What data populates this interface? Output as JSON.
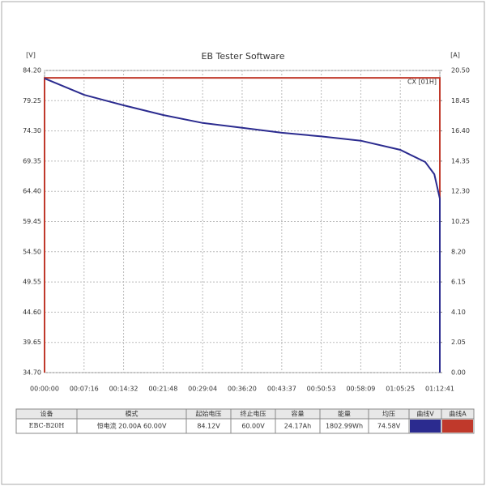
{
  "chart_data": {
    "type": "line",
    "title": "EB Tester Software",
    "y_label": "[V]",
    "y2_label": "[A]",
    "annotation": "CX [01H]",
    "x": [
      0,
      0,
      436,
      872,
      1308,
      1744,
      2180,
      2617,
      3053,
      3489,
      3925,
      4200,
      4300,
      4361,
      4361
    ],
    "xlim": [
      0,
      4361
    ],
    "xticks": [
      {
        "value": 0,
        "label": "00:00:00"
      },
      {
        "value": 436,
        "label": "00:07:16"
      },
      {
        "value": 872,
        "label": "00:14:32"
      },
      {
        "value": 1308,
        "label": "00:21:48"
      },
      {
        "value": 1744,
        "label": "00:29:04"
      },
      {
        "value": 2180,
        "label": "00:36:20"
      },
      {
        "value": 2617,
        "label": "00:43:37"
      },
      {
        "value": 3053,
        "label": "00:50:53"
      },
      {
        "value": 3489,
        "label": "00:58:09"
      },
      {
        "value": 3925,
        "label": "01:05:25"
      },
      {
        "value": 4361,
        "label": "01:12:41"
      }
    ],
    "ylim": [
      34.7,
      84.2
    ],
    "yticks": [
      {
        "value": 34.7,
        "label": "34.70"
      },
      39.65,
      {
        "value": 44.6,
        "label": "44.60"
      },
      49.55,
      {
        "value": 54.5,
        "label": "54.50"
      },
      59.45,
      {
        "value": 64.4,
        "label": "64.40"
      },
      69.35,
      {
        "value": 74.3,
        "label": "74.30"
      },
      79.25,
      {
        "value": 84.2,
        "label": "84.20"
      }
    ],
    "y2lim": [
      0,
      20.5
    ],
    "y2ticks": [
      {
        "value": 0,
        "label": "0.00"
      },
      2.05,
      {
        "value": 4.1,
        "label": "4.10"
      },
      6.15,
      {
        "value": 8.2,
        "label": "8.20"
      },
      10.25,
      {
        "value": 12.3,
        "label": "12.30"
      },
      14.35,
      {
        "value": 16.4,
        "label": "16.40"
      },
      18.45,
      {
        "value": 20.5,
        "label": "20.50"
      }
    ],
    "grid": true,
    "series": [
      {
        "color": "#2b2b8f",
        "values": [
          null,
          82.9,
          80.2,
          78.5,
          76.9,
          75.6,
          74.8,
          74.0,
          73.4,
          72.7,
          71.2,
          69.2,
          67.2,
          63.2,
          34.7
        ]
      },
      {
        "color": "#c0392b",
        "axis": "y2",
        "values": [
          0,
          20.0,
          20.0,
          20.0,
          20.0,
          20.0,
          20.0,
          20.0,
          20.0,
          20.0,
          20.0,
          20.0,
          20.0,
          20.0,
          0
        ]
      }
    ]
  },
  "table": {
    "header": [
      "设备",
      "模式",
      "起始电压",
      "终止电压",
      "容量",
      "能量",
      "均压",
      "曲线V",
      "曲线A"
    ],
    "rows": [
      [
        "EBC-B20H",
        "恒电流  20.00A  60.00V",
        "84.12V",
        "60.00V",
        "24.17Ah",
        "1802.99Wh",
        "74.58V"
      ]
    ]
  }
}
